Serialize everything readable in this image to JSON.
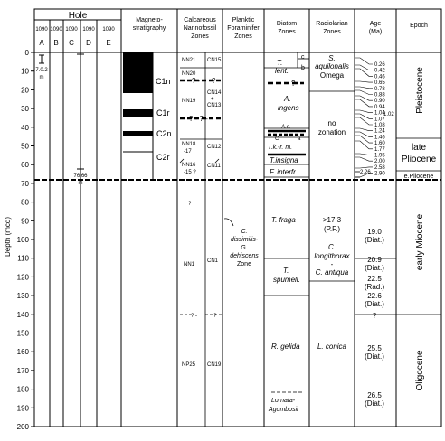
{
  "header": {
    "hole_title": "Hole",
    "hole_numbers": [
      "1090",
      "1090",
      "1090",
      "1090",
      "1090"
    ],
    "hole_letters": [
      "A",
      "B",
      "C",
      "D",
      "E"
    ],
    "columns": {
      "magneto": [
        "Magneto-",
        "stratigraphy"
      ],
      "nanno": [
        "Calcareous",
        "Nannofossil",
        "Zones"
      ],
      "foram": [
        "Planktic",
        "Foraminifer",
        "Zones"
      ],
      "diatom": [
        "Diatom",
        "Zones"
      ],
      "radio": [
        "Radiolarian",
        "Zones"
      ],
      "age": [
        "Age",
        "(Ma)"
      ],
      "epoch": [
        "Epoch"
      ]
    }
  },
  "depth_axis": {
    "label": "Depth (mcd)",
    "ticks": [
      "0",
      "10",
      "20",
      "30",
      "40",
      "50",
      "60",
      "70",
      "80",
      "90",
      "100",
      "110",
      "120",
      "130",
      "140",
      "150",
      "160",
      "170",
      "180",
      "190",
      "200"
    ]
  },
  "holes": {
    "a_label": [
      "7.0.2",
      "m"
    ],
    "c_label": [
      "76.66",
      "m"
    ]
  },
  "magneto": {
    "labels": [
      "C1n",
      "C1r",
      "C2n",
      "C2r"
    ]
  },
  "nanno": {
    "left": [
      "NN21",
      "NN20",
      "NN19",
      "NN18",
      "-17",
      "NN16",
      "-15 ?",
      "?",
      "NN1",
      "? -",
      "NP25"
    ],
    "right": [
      "CN15",
      "CN14",
      "+",
      "CN13",
      "CN12",
      "CN11",
      "CN1",
      "?",
      "CN19"
    ],
    "qmarks": [
      "? -",
      "?",
      "? - ? -"
    ]
  },
  "foram": {
    "zone": [
      "C.",
      "dissimilis-",
      "G.",
      "dehiscens",
      "Zone"
    ]
  },
  "diatom": {
    "labels": [
      "T.",
      "lent.",
      "c",
      "b",
      "?",
      "A.",
      "ingens",
      "A.e.",
      "C",
      "a",
      "T.k.-r. m.",
      "T.insigna",
      "F. interfr.",
      "T. fraga",
      "T.",
      "spumell.",
      "R. gelida",
      "Lornata-",
      "Agombosii"
    ]
  },
  "radio": {
    "labels": [
      "S.",
      "aquilonalis",
      "Omega",
      "no",
      "zonation",
      ">17.3",
      "(P.F.)",
      "C.",
      "longithorax",
      "-",
      "C. antiqua",
      "L. conica"
    ]
  },
  "age": {
    "small": [
      "0.26",
      "0.42",
      "0.46",
      "0.65",
      "0.78",
      "0.88",
      "0.90",
      "0.94",
      "1.04",
      "1.07",
      "1.08",
      "1.24",
      "1.46",
      "1.60",
      "1.77",
      "1.95",
      "2.00",
      "2.58",
      "2.90"
    ],
    "small_right": [
      "1.02",
      "2.26"
    ],
    "big": [
      "19.0",
      "(Diat.)",
      "20.9",
      "(Diat.)",
      "22.5",
      "(Rad.)",
      "22.6",
      "(Diat.)",
      "?",
      "25.5",
      "(Diat.)",
      "26.5",
      "(Diat.)"
    ]
  },
  "epoch": {
    "labels": [
      "Pleistocene",
      "late",
      "Pliocene",
      "e.Pliocene",
      "early Miocene",
      "Oligocene"
    ]
  }
}
